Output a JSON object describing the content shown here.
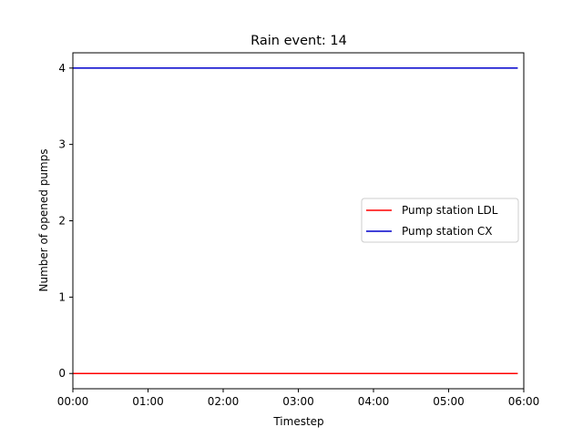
{
  "chart_data": {
    "type": "line",
    "title": "Rain event: 14",
    "xlabel": "Timestep",
    "ylabel": "Number of opened pumps",
    "x_ticks": [
      "00:00",
      "01:00",
      "02:00",
      "03:00",
      "04:00",
      "05:00",
      "06:00"
    ],
    "y_ticks": [
      "0",
      "1",
      "2",
      "3",
      "4"
    ],
    "xlim_hours": [
      0,
      6
    ],
    "ylim": [
      -0.2,
      4.2
    ],
    "legend_position": "center-right",
    "grid": false,
    "series": [
      {
        "name": "Pump station LDL",
        "color": "#ff0000",
        "x_hours": [
          0,
          5.92
        ],
        "values": [
          0,
          0
        ]
      },
      {
        "name": "Pump station CX",
        "color": "#0000cc",
        "x_hours": [
          0,
          5.92
        ],
        "values": [
          4,
          4
        ]
      }
    ]
  }
}
